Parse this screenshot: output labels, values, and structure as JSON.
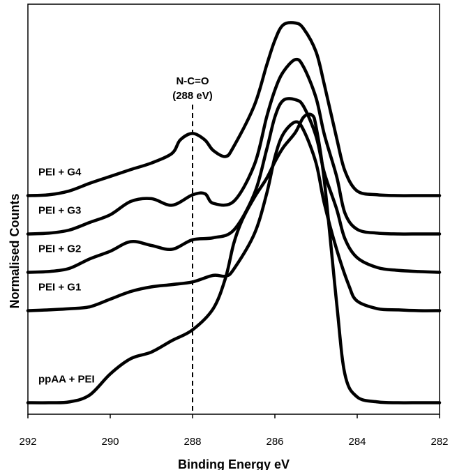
{
  "chart_data": {
    "type": "line",
    "title": "",
    "xlabel": "Binding Energy eV",
    "ylabel": "Normalised Counts",
    "xlim": [
      292,
      282
    ],
    "x_reversed": true,
    "ylim": [
      0,
      10
    ],
    "y_ticks_shown": false,
    "x_ticks": [
      "292",
      "290",
      "288",
      "286",
      "284",
      "282"
    ],
    "grid": false,
    "legend": "none",
    "line_color": "#000000",
    "annotation": {
      "label_line1": "N-C=O",
      "label_line2": "(288 eV)",
      "x": 288,
      "style": "dashed vertical line"
    },
    "series": [
      {
        "name": "PEI + G4",
        "x": [
          292,
          291.5,
          291,
          290.5,
          290,
          289.5,
          289,
          288.5,
          288.3,
          288,
          287.7,
          287.5,
          287.2,
          287,
          286.5,
          286.2,
          286,
          285.8,
          285.5,
          285.3,
          285,
          284.8,
          284.5,
          284.3,
          284,
          283.5,
          283,
          282.5,
          282
        ],
        "y": [
          5.5,
          5.52,
          5.62,
          5.82,
          6.0,
          6.18,
          6.35,
          6.6,
          6.95,
          7.12,
          6.95,
          6.68,
          6.52,
          6.78,
          7.85,
          8.9,
          9.55,
          9.95,
          10.0,
          9.85,
          9.25,
          8.4,
          7.0,
          6.15,
          5.62,
          5.52,
          5.5,
          5.5,
          5.5
        ]
      },
      {
        "name": "PEI + G3",
        "x": [
          292,
          291.5,
          291,
          290.5,
          290,
          289.5,
          289,
          288.5,
          288,
          287.7,
          287.5,
          287,
          286.5,
          286.2,
          286,
          285.8,
          285.5,
          285.3,
          285,
          284.8,
          284.5,
          284.3,
          284,
          283.5,
          283,
          282.5,
          282
        ],
        "y": [
          4.5,
          4.52,
          4.6,
          4.8,
          5.0,
          5.35,
          5.42,
          5.25,
          5.52,
          5.55,
          5.3,
          5.35,
          6.3,
          7.55,
          8.25,
          8.72,
          9.05,
          8.85,
          8.05,
          7.1,
          6.0,
          5.05,
          4.62,
          4.52,
          4.5,
          4.5,
          4.5
        ]
      },
      {
        "name": "PEI + G2",
        "x": [
          292,
          291.5,
          291,
          290.5,
          290,
          289.5,
          289,
          288.5,
          288,
          287.5,
          287,
          286.5,
          286.2,
          286,
          285.8,
          285.5,
          285.3,
          285,
          284.8,
          284.5,
          284.3,
          284,
          283.5,
          283,
          282.5,
          282
        ],
        "y": [
          3.5,
          3.52,
          3.6,
          3.85,
          4.05,
          4.3,
          4.2,
          4.1,
          4.35,
          4.4,
          4.6,
          5.55,
          6.7,
          7.55,
          7.98,
          8.0,
          7.82,
          7.05,
          6.1,
          5.15,
          4.38,
          3.88,
          3.62,
          3.55,
          3.52,
          3.5
        ]
      },
      {
        "name": "PEI + G1",
        "x": [
          292,
          291.5,
          291,
          290.5,
          290,
          289.5,
          289,
          288.5,
          288,
          287.5,
          287.2,
          287,
          286.5,
          286.2,
          286,
          285.8,
          285.5,
          285.3,
          285,
          284.8,
          284.5,
          284.2,
          284,
          283.5,
          283,
          282.5,
          282
        ],
        "y": [
          2.5,
          2.52,
          2.55,
          2.6,
          2.8,
          3.0,
          3.12,
          3.18,
          3.25,
          3.42,
          3.4,
          3.58,
          4.5,
          5.55,
          6.5,
          7.1,
          7.42,
          7.2,
          6.35,
          5.3,
          4.1,
          3.15,
          2.75,
          2.55,
          2.52,
          2.5,
          2.5
        ]
      },
      {
        "name": "ppAA + PEI",
        "x": [
          292,
          291.5,
          291,
          290.5,
          290,
          289.5,
          289,
          288.5,
          288,
          287.5,
          287.2,
          287,
          286.8,
          286.5,
          286.2,
          286,
          285.8,
          285.5,
          285.3,
          285.1,
          285,
          284.8,
          284.5,
          284.3,
          284,
          283.5,
          283,
          282.5,
          282
        ],
        "y": [
          0.1,
          0.1,
          0.12,
          0.3,
          0.85,
          1.25,
          1.42,
          1.72,
          2.0,
          2.55,
          3.35,
          4.25,
          4.85,
          5.45,
          5.95,
          6.38,
          6.75,
          7.15,
          7.55,
          7.6,
          7.3,
          5.9,
          2.7,
          0.85,
          0.25,
          0.12,
          0.1,
          0.1,
          0.1
        ]
      }
    ]
  }
}
